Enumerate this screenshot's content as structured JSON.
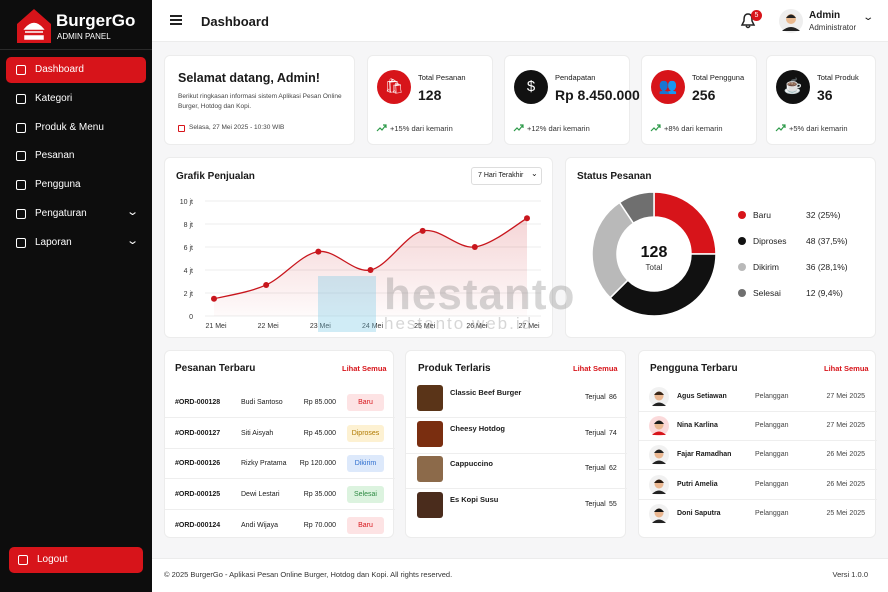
{
  "brand": {
    "name": "BurgerGo",
    "subtitle": "ADMIN PANEL"
  },
  "menu": [
    "Dashboard",
    "Kategori",
    "Produk & Menu",
    "Pesanan",
    "Pengguna",
    "Pengaturan",
    "Laporan"
  ],
  "logout": "Logout",
  "header": {
    "title": "Dashboard",
    "notifications": 5,
    "user": "Admin",
    "role": "Administrator"
  },
  "welcome": {
    "title": "Selamat datang, Admin!",
    "text": "Berikut ringkasan informasi sistem Aplikasi Pesan Online Burger, Hotdog dan Kopi.",
    "date": "Selasa, 27 Mei 2025 - 10:30 WIB"
  },
  "stats": [
    {
      "label": "Total Pesanan",
      "value": "128",
      "change": "+15% dari kemarin"
    },
    {
      "label": "Pendapatan",
      "value": "Rp 8.450.000",
      "change": "+12% dari kemarin"
    },
    {
      "label": "Total Pengguna",
      "value": "256",
      "change": "+8% dari kemarin"
    },
    {
      "label": "Total Produk",
      "value": "36",
      "change": "+5% dari kemarin"
    }
  ],
  "sales_chart": {
    "type": "line",
    "title": "Grafik Penjualan",
    "filter": "7 Hari Terakhir",
    "categories": [
      "21 Mei",
      "22 Mei",
      "23 Mei",
      "24 Mei",
      "25 Mei",
      "26 Mei",
      "27 Mei"
    ],
    "values": [
      1.5,
      2.7,
      5.6,
      4.0,
      7.4,
      6.0,
      8.5
    ],
    "color": "#c8161d",
    "ylim": [
      0,
      10
    ],
    "yticks": [
      0,
      {
        "value": 2,
        "label": "2 jt"
      },
      {
        "value": 4,
        "label": "4 jt"
      },
      {
        "value": 6,
        "label": "6 jt"
      },
      {
        "value": 8,
        "label": "8 jt"
      },
      {
        "value": 10,
        "label": "10 jt"
      }
    ],
    "grid": true
  },
  "order_status": {
    "type": "pie",
    "title": "Status Pesanan",
    "total": 128,
    "total_label": "Total",
    "categories": [
      "Baru",
      "Diproses",
      "Dikirim",
      "Selesai"
    ],
    "values": [
      32,
      48,
      36,
      12
    ],
    "value_labels": [
      "32 (25%)",
      "48 (37,5%)",
      "36 (28,1%)",
      "12 (9,4%)"
    ],
    "colors": [
      "#d7141a",
      "#111111",
      "#b9b9b9",
      "#6f6f6f"
    ]
  },
  "recent_orders": {
    "title": "Pesanan Terbaru",
    "link": "Lihat Semua",
    "rows": [
      [
        "#ORD-000128",
        "Budi Santoso",
        "Rp 85.000",
        "Baru"
      ],
      [
        "#ORD-000127",
        "Siti Aisyah",
        "Rp 45.000",
        "Diproses"
      ],
      [
        "#ORD-000126",
        "Rizky Pratama",
        "Rp 120.000",
        "Dikirim"
      ],
      [
        "#ORD-000125",
        "Dewi Lestari",
        "Rp 35.000",
        "Selesai"
      ],
      [
        "#ORD-000124",
        "Andi Wijaya",
        "Rp 70.000",
        "Baru"
      ]
    ]
  },
  "best_sellers": {
    "title": "Produk Terlaris",
    "link": "Lihat Semua",
    "sold_label": "Terjual",
    "items": [
      {
        "name": "Classic Beef Burger",
        "sold": 86
      },
      {
        "name": "Cheesy Hotdog",
        "sold": 74
      },
      {
        "name": "Cappuccino",
        "sold": 62
      },
      {
        "name": "Es Kopi Susu",
        "sold": 55
      }
    ]
  },
  "recent_users": {
    "title": "Pengguna Terbaru",
    "link": "Lihat Semua",
    "rows": [
      [
        "Agus Setiawan",
        "Pelanggan",
        "27 Mei 2025"
      ],
      [
        "Nina Karlina",
        "Pelanggan",
        "27 Mei 2025"
      ],
      [
        "Fajar Ramadhan",
        "Pelanggan",
        "26 Mei 2025"
      ],
      [
        "Putri Amelia",
        "Pelanggan",
        "26 Mei 2025"
      ],
      [
        "Doni Saputra",
        "Pelanggan",
        "25 Mei 2025"
      ]
    ]
  },
  "watermark": [
    "hestanto",
    "hestanto.web.id"
  ],
  "footer": {
    "copyright": "© 2025 BurgerGo - Aplikasi Pesan Online Burger, Hotdog dan Kopi. All rights reserved.",
    "version": "Versi 1.0.0"
  }
}
